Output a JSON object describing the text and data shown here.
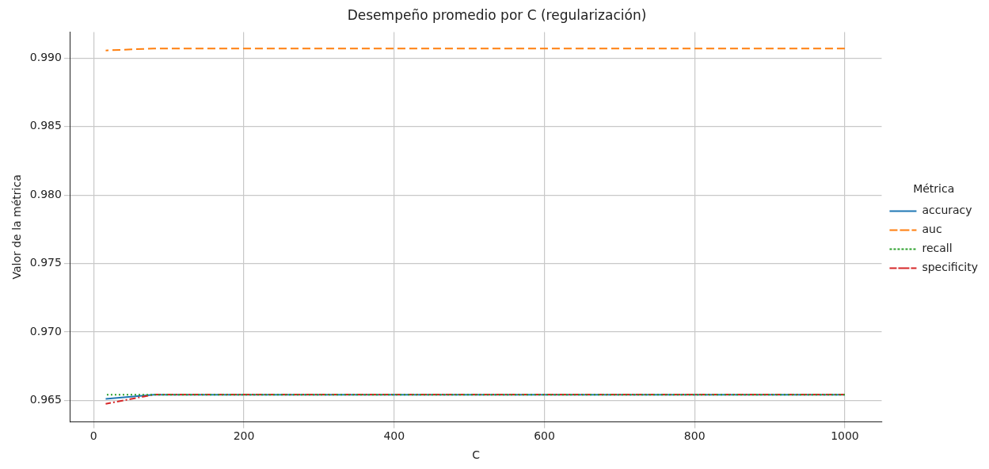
{
  "chart_data": {
    "type": "line",
    "title": "Desempeño promedio por C (regularización)",
    "xlabel": "C",
    "ylabel": "Valor de la métrica",
    "legend_title": "Métrica",
    "legend": "right",
    "grid": true,
    "x": [
      16,
      80,
      1000
    ],
    "xlim": [
      -31,
      1049
    ],
    "xticks": [
      0,
      200,
      400,
      600,
      800,
      1000
    ],
    "ylim": [
      0.96343,
      0.99191
    ],
    "yticks": [
      0.965,
      {
        "value": 0.97,
        "label": "0.970"
      },
      0.975,
      {
        "value": 0.98,
        "label": "0.980"
      },
      0.985,
      {
        "value": 0.99,
        "label": "0.990"
      }
    ],
    "series": [
      {
        "name": "accuracy",
        "color": "#1f77b4",
        "line_style": "solid",
        "values": [
          0.9651,
          0.9654,
          0.9654
        ]
      },
      {
        "name": "auc",
        "color": "#ff7f0e",
        "line_style": "dashed",
        "values": [
          0.99056,
          0.99071,
          0.99071
        ]
      },
      {
        "name": "recall",
        "color": "#2ca02c",
        "line_style": "dotted",
        "values": [
          0.96541,
          0.96541,
          0.96541
        ]
      },
      {
        "name": "specificity",
        "color": "#d62728",
        "line_style": "dashdot",
        "values": [
          0.96474,
          0.96542,
          0.96542
        ]
      }
    ]
  }
}
